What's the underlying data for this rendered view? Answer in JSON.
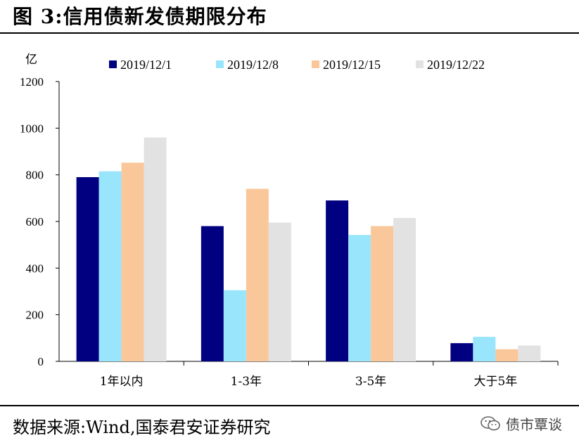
{
  "figure": {
    "title": "图 3:信用债新发债期限分布",
    "source": "数据来源:Wind,国泰君安证券研究",
    "watermark": "债市覃谈"
  },
  "chart_data": {
    "type": "bar",
    "unit": "亿",
    "categories": [
      "1年以内",
      "1-3年",
      "3-5年",
      "大于5年"
    ],
    "series": [
      {
        "name": "2019/12/1",
        "color": "#000080",
        "values": [
          790,
          580,
          690,
          78
        ]
      },
      {
        "name": "2019/12/8",
        "color": "#99E5FB",
        "values": [
          815,
          305,
          542,
          105
        ]
      },
      {
        "name": "2019/12/15",
        "color": "#FAC79A",
        "values": [
          852,
          740,
          580,
          52
        ]
      },
      {
        "name": "2019/12/22",
        "color": "#E2E2E2",
        "values": [
          960,
          595,
          615,
          68
        ]
      }
    ],
    "ylim": [
      0,
      1200
    ],
    "yticks": [
      0,
      200,
      400,
      600,
      800,
      1000,
      1200
    ],
    "grid": false,
    "legend_position": "top"
  }
}
